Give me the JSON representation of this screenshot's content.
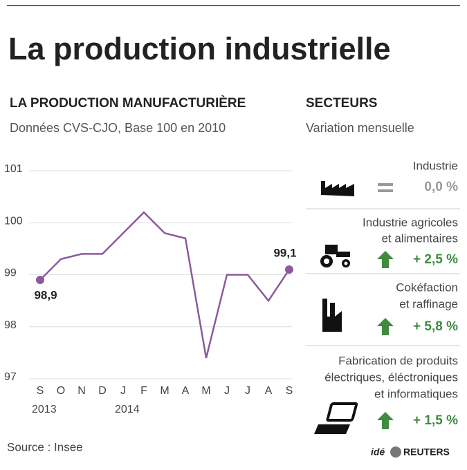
{
  "title": "La production industrielle",
  "chart_data": {
    "type": "line",
    "title": "LA PRODUCTION MANUFACTURIÈRE",
    "subtitle": "Données CVS-CJO, Base 100 en 2010",
    "categories": [
      "S",
      "O",
      "N",
      "D",
      "J",
      "F",
      "M",
      "A",
      "M",
      "J",
      "J",
      "A",
      "S"
    ],
    "years": [
      "2013",
      null,
      null,
      null,
      "2014",
      null,
      null,
      null,
      null,
      null,
      null,
      null,
      null
    ],
    "values": [
      98.9,
      99.3,
      99.4,
      99.4,
      99.8,
      100.2,
      99.8,
      99.7,
      97.4,
      99.0,
      99.0,
      98.5,
      99.1
    ],
    "value_labels": [
      "98,9",
      null,
      null,
      null,
      null,
      null,
      null,
      null,
      null,
      null,
      null,
      null,
      "99,1"
    ],
    "color": "#8b5a9c",
    "ylim": [
      97,
      101
    ],
    "yticks": [
      97,
      98,
      99,
      100,
      101
    ],
    "grid": true
  },
  "sectors": {
    "title": "SECTEURS",
    "subtitle": "Variation mensuelle",
    "up_color": "#3f8b3f",
    "flat_color": "#999999",
    "items": [
      {
        "name": [
          "Industrie"
        ],
        "change": "0,0 %",
        "direction": "flat"
      },
      {
        "name": [
          "Industrie agricoles",
          "et alimentaires"
        ],
        "change": "+ 2,5 %",
        "direction": "up"
      },
      {
        "name": [
          "Cokéfaction",
          "et raffinage"
        ],
        "change": "+ 5,8 %",
        "direction": "up"
      },
      {
        "name": [
          "Fabrication de produits",
          "électriques, éléctroniques",
          "et informatiques"
        ],
        "change": "+ 1,5 %",
        "direction": "up"
      }
    ]
  },
  "source": "Source : Insee",
  "credit": [
    "idé",
    "REUTERS"
  ]
}
